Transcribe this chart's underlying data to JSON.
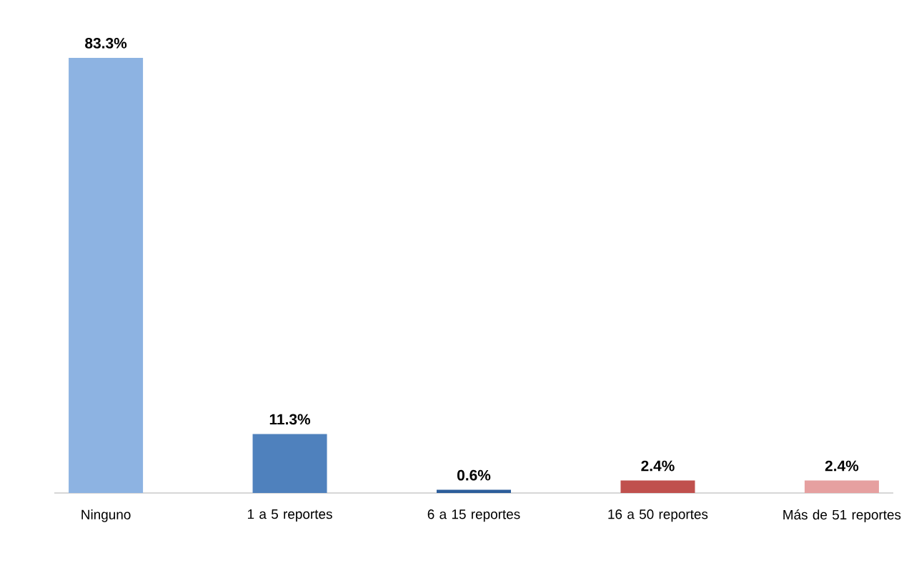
{
  "chart_data": {
    "type": "bar",
    "categories": [
      "Ninguno",
      "1 a 5 reportes",
      "6 a 15 reportes",
      "16 a 50 reportes",
      "Más de 51 reportes"
    ],
    "values": [
      83.3,
      11.3,
      0.6,
      2.4,
      2.4
    ],
    "colors": [
      "#8db3e2",
      "#4f81bd",
      "#2c5d9a",
      "#c0504d",
      "#e6a0a0"
    ],
    "value_labels": [
      "83.3%",
      "11.3%",
      "0.6%",
      "2.4%",
      "2.4%"
    ]
  }
}
